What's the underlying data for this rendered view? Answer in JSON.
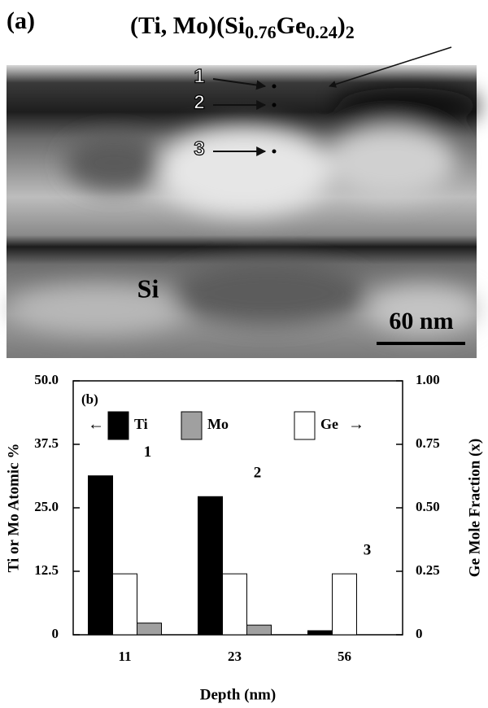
{
  "figure_a": {
    "panel_label": "(a)",
    "formula_parts": [
      "(Ti, Mo)(Si",
      "0.76",
      "Ge",
      "0.24",
      ")",
      "2"
    ],
    "markers": [
      "1",
      "2",
      "3"
    ],
    "region_label": "Si",
    "scale_bar": "60 nm"
  },
  "chart_data": {
    "type": "bar",
    "panel_label": "(b)",
    "x_label": "Depth (nm)",
    "y_label": "Ti or Mo Atomic %",
    "y2_label": "Ge Mole Fraction (x)",
    "categories": [
      "11",
      "23",
      "56"
    ],
    "series": [
      {
        "name": "Ti",
        "color": "#000000",
        "values": [
          31.3,
          27.2,
          0.8
        ]
      },
      {
        "name": "Ge",
        "color": "#ffffff",
        "axis": "y2",
        "values": [
          0.24,
          0.24,
          0.24
        ]
      },
      {
        "name": "Mo",
        "color": "#a0a0a0",
        "values": [
          2.3,
          1.9,
          0
        ]
      }
    ],
    "legend_arrows": [
      "←",
      "→"
    ],
    "annotations": [
      "1",
      "2",
      "3"
    ],
    "ylim": [
      0,
      50
    ],
    "yticks": [
      0,
      12.5,
      {
        "value": 25,
        "label": "25.0"
      },
      37.5,
      {
        "value": 50,
        "label": "50.0"
      }
    ],
    "y2lim": [
      0,
      1
    ],
    "y2ticks": [
      0,
      0.25,
      {
        "value": 0.5,
        "label": "0.50"
      },
      0.75,
      {
        "value": 1,
        "label": "1.00"
      }
    ]
  }
}
